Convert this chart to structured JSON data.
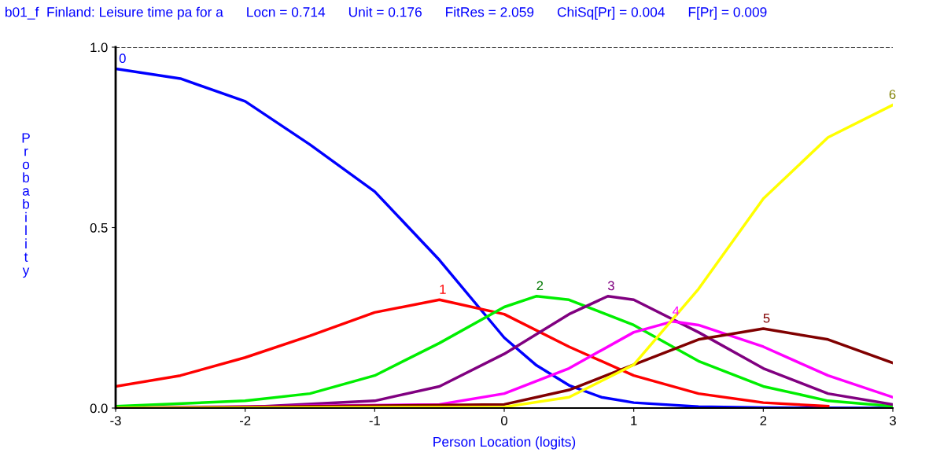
{
  "chart_data": {
    "type": "line",
    "title": "b01_f  Finland: Leisure time pa for a      Locn = 0.714      Unit = 0.176      FitRes = 2.059      ChiSq[Pr] = 0.004      F[Pr] = 0.009",
    "xlabel": "Person Location (logits)",
    "ylabel": "Probability",
    "xlim": [
      -3,
      3
    ],
    "xticks": [
      -3,
      -2,
      -1,
      0,
      1,
      2,
      3
    ],
    "ylim": [
      0,
      1
    ],
    "yticks": [
      {
        "value": 0,
        "label": "0.0"
      },
      {
        "value": 0.5,
        "label": "0.5"
      },
      {
        "value": 1,
        "label": "1.0"
      }
    ],
    "grid": false,
    "legend": false,
    "marker": "none",
    "line_style": "solid",
    "ref_lines": [
      {
        "axis": "y",
        "value": 1,
        "label": null,
        "color": "#000000",
        "line_style": "dashed"
      }
    ],
    "series": [
      {
        "name": "0",
        "color": "#0000ff",
        "x": [
          -3,
          -2.5,
          -2,
          -1.5,
          -1,
          -0.5,
          0,
          0.25,
          0.5,
          0.75,
          1,
          1.5,
          2,
          3
        ],
        "values": [
          0.94,
          0.913,
          0.85,
          0.73,
          0.6,
          0.41,
          0.195,
          0.118,
          0.063,
          0.03,
          0.015,
          0.004,
          0.001,
          0
        ]
      },
      {
        "name": "1",
        "color": "#ff0000",
        "x": [
          -3,
          -2.5,
          -2,
          -1.5,
          -1,
          -0.5,
          0,
          0.5,
          1,
          1.5,
          2,
          2.5
        ],
        "values": [
          0.06,
          0.09,
          0.14,
          0.2,
          0.265,
          0.3,
          0.26,
          0.17,
          0.09,
          0.04,
          0.015,
          0.005
        ]
      },
      {
        "name": "2",
        "color": "#00ee00",
        "x": [
          -3,
          -2,
          -1.5,
          -1,
          -0.5,
          0,
          0.25,
          0.5,
          1,
          1.5,
          2,
          2.5,
          3
        ],
        "values": [
          0.005,
          0.02,
          0.04,
          0.09,
          0.18,
          0.28,
          0.31,
          0.3,
          0.23,
          0.13,
          0.06,
          0.02,
          0.005
        ]
      },
      {
        "name": "3",
        "color": "#800080",
        "x": [
          -3,
          -2,
          -1,
          -0.5,
          0,
          0.5,
          0.8,
          1,
          1.5,
          2,
          2.5,
          3
        ],
        "values": [
          0,
          0.002,
          0.02,
          0.06,
          0.15,
          0.26,
          0.31,
          0.3,
          0.21,
          0.11,
          0.04,
          0.01
        ]
      },
      {
        "name": "4",
        "color": "#ff00ff",
        "x": [
          -3,
          -0.5,
          0,
          0.5,
          1,
          1.3,
          1.5,
          2,
          2.5,
          3
        ],
        "values": [
          0,
          0.01,
          0.04,
          0.11,
          0.21,
          0.24,
          0.23,
          0.17,
          0.09,
          0.03
        ]
      },
      {
        "name": "5",
        "color": "#800000",
        "x": [
          -3,
          0,
          0.5,
          1,
          1.5,
          2,
          2.5,
          3
        ],
        "values": [
          0,
          0.01,
          0.05,
          0.12,
          0.19,
          0.22,
          0.19,
          0.125
        ]
      },
      {
        "name": "6",
        "color": "#ffff00",
        "x": [
          -3,
          0,
          0.5,
          1,
          1.5,
          2,
          2.5,
          3
        ],
        "values": [
          0,
          0.003,
          0.03,
          0.12,
          0.33,
          0.58,
          0.75,
          0.84
        ]
      }
    ]
  }
}
